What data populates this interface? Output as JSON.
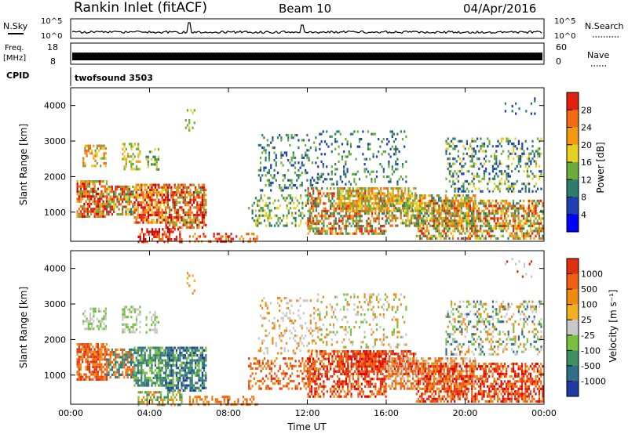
{
  "header": {
    "station": "Rankin Inlet (fitACF)",
    "beam": "Beam 10",
    "date": "04/Apr/2016"
  },
  "strips": {
    "nsky_label": "N.Sky",
    "nsky_ticks": [
      "10^5",
      "10^0"
    ],
    "nsky_right_ticks": [
      "10^5",
      "10^0"
    ],
    "nsearch_label": "N.Search",
    "freq_label_line1": "Freq.",
    "freq_label_line2": "[MHz]",
    "freq_ticks": [
      "18",
      "8"
    ],
    "nave_ticks": [
      "60",
      "0"
    ],
    "nave_label": "Nave",
    "cpid_label": "CPID",
    "cpid_value": "twofsound 3503"
  },
  "colors": {
    "power_scale": [
      "#0000ff",
      "#1f3fb0",
      "#2e7d6a",
      "#6aab3a",
      "#e8d020",
      "#f59a10",
      "#f36a10",
      "#e02010",
      "#d00000"
    ],
    "velocity_scale": [
      "#1e3aa0",
      "#2f6f8a",
      "#3f9060",
      "#77c040",
      "#c8c8c8",
      "#f0b020",
      "#f08a10",
      "#f06010",
      "#e03010",
      "#e00000"
    ]
  },
  "chart_data": [
    {
      "type": "heatmap",
      "panel": "power",
      "xlabel": "",
      "ylabel": "Slant Range [km]",
      "x_ticks": [
        "00:00",
        "04:00",
        "08:00",
        "12:00",
        "16:00",
        "20:00",
        "00:00"
      ],
      "xlim": [
        0,
        24
      ],
      "ylim": [
        180,
        4500
      ],
      "y_ticks": [
        1000,
        2000,
        3000,
        4000
      ],
      "colorbar_label": "Power [dB]",
      "colorbar_ticks": [
        4,
        8,
        12,
        16,
        20,
        24,
        28
      ],
      "colorbar_range": [
        0,
        32
      ]
    },
    {
      "type": "heatmap",
      "panel": "velocity",
      "xlabel": "Time UT",
      "ylabel": "Slant Range [km]",
      "x_ticks": [
        "00:00",
        "04:00",
        "08:00",
        "12:00",
        "16:00",
        "20:00",
        "00:00"
      ],
      "xlim": [
        0,
        24
      ],
      "ylim": [
        180,
        4500
      ],
      "y_ticks": [
        1000,
        2000,
        3000,
        4000
      ],
      "colorbar_label": "Velocity [m s⁻¹]",
      "colorbar_ticks": [
        "1000",
        "500",
        "100",
        "25",
        "-25",
        "-100",
        "-500",
        "-1000"
      ]
    }
  ]
}
